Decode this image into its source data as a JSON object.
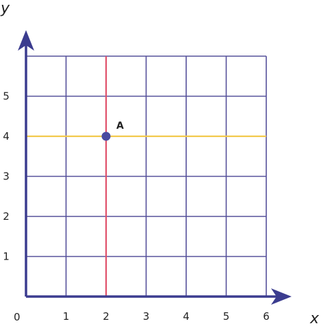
{
  "colors": {
    "grid": "#55509a",
    "axis": "#3b3c8f",
    "vertical_line": "#e0506a",
    "horizontal_line": "#f2c94c",
    "point": "#4a4aa0",
    "text": "#222222"
  },
  "labels": {
    "x_axis": "x",
    "y_axis": "y",
    "origin": "0"
  },
  "chart_data": {
    "type": "scatter",
    "x_ticks": [
      "1",
      "2",
      "3",
      "4",
      "5",
      "6"
    ],
    "y_ticks": [
      "1",
      "2",
      "3",
      "4",
      "5"
    ],
    "xlim": [
      0,
      6
    ],
    "ylim": [
      0,
      6
    ],
    "grid": true,
    "guide_lines": [
      {
        "orientation": "vertical",
        "x": 2,
        "color": "#e0506a"
      },
      {
        "orientation": "horizontal",
        "y": 4,
        "color": "#f2c94c"
      }
    ],
    "points": [
      {
        "label": "A",
        "x": 2,
        "y": 4
      }
    ]
  }
}
